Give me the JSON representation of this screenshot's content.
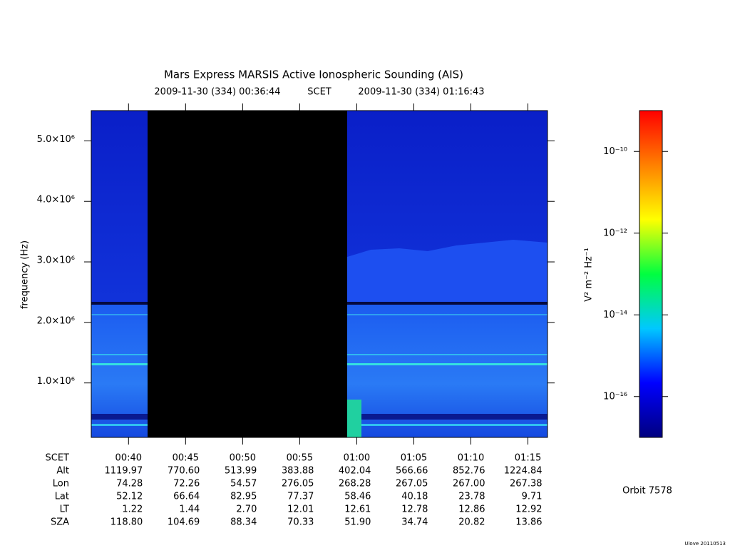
{
  "chart_data": {
    "type": "spectrogram",
    "title": "Mars Express MARSIS Active Ionospheric Sounding (AIS)",
    "start_time": "2009-11-30 (334) 00:36:44",
    "time_system": "SCET",
    "end_time": "2009-11-30 (334) 01:16:43",
    "ylabel": "frequency (Hz)",
    "xlim": [
      36.733,
      76.717
    ],
    "xticks": [
      {
        "value": 40,
        "label": "00:40"
      },
      {
        "value": 45,
        "label": "00:45"
      },
      {
        "value": 50,
        "label": "00:50"
      },
      {
        "value": 55,
        "label": "00:55"
      },
      {
        "value": 60,
        "label": "01:00"
      },
      {
        "value": 65,
        "label": "01:05"
      },
      {
        "value": 70,
        "label": "01:10"
      },
      {
        "value": 75,
        "label": "01:15"
      }
    ],
    "ylim": [
      100000,
      5500000
    ],
    "yticks": [
      {
        "value": 1000000,
        "label": "1.0×10⁶"
      },
      {
        "value": 2000000,
        "label": "2.0×10⁶"
      },
      {
        "value": 3000000,
        "label": "3.0×10⁶"
      },
      {
        "value": 4000000,
        "label": "4.0×10⁶"
      },
      {
        "value": 5000000,
        "label": "5.0×10⁶"
      }
    ],
    "colorbar": {
      "label": "V² m⁻² Hz⁻¹",
      "log": true,
      "clim": [
        1e-17,
        1e-09
      ],
      "ticks": [
        {
          "value": 1e-10,
          "label": "10⁻¹⁰"
        },
        {
          "value": 1e-12,
          "label": "10⁻¹²"
        },
        {
          "value": 1e-14,
          "label": "10⁻¹⁴"
        },
        {
          "value": 1e-16,
          "label": "10⁻¹⁶"
        }
      ],
      "colors": [
        "#00007f",
        "#0000ff",
        "#00c8ff",
        "#00ff40",
        "#ffff00",
        "#ff8000",
        "#ff0000"
      ]
    },
    "ephemeris": {
      "time_label": "SCET",
      "rows": [
        {
          "name": "Alt",
          "values": [
            "1119.97",
            "770.60",
            "513.99",
            "383.88",
            "402.04",
            "566.66",
            "852.76",
            "1224.84"
          ]
        },
        {
          "name": "Lon",
          "values": [
            "74.28",
            "72.26",
            "54.57",
            "276.05",
            "268.28",
            "267.05",
            "267.00",
            "267.38"
          ]
        },
        {
          "name": "Lat",
          "values": [
            "52.12",
            "66.64",
            "82.95",
            "77.37",
            "58.46",
            "40.18",
            "23.78",
            "9.71"
          ]
        },
        {
          "name": "LT",
          "values": [
            "1.22",
            "1.44",
            "2.70",
            "12.01",
            "12.61",
            "12.78",
            "12.86",
            "12.92"
          ]
        },
        {
          "name": "SZA",
          "values": [
            "118.80",
            "104.69",
            "88.34",
            "70.33",
            "51.90",
            "34.74",
            "20.82",
            "13.86"
          ]
        }
      ]
    },
    "orbit": "Orbit 7578",
    "footer": "Ulove 20110513"
  }
}
